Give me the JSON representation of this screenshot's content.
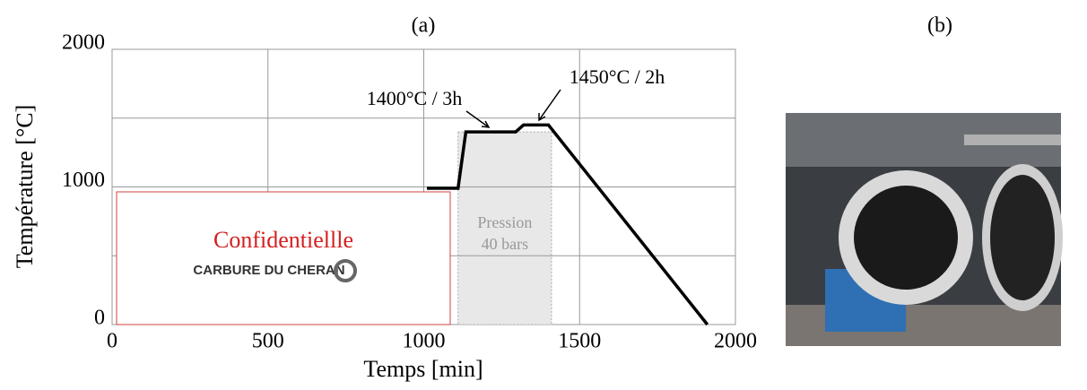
{
  "chart_data": {
    "type": "line",
    "panel_label": "(a)",
    "xlabel": "Temps [min]",
    "ylabel": "Température [°C]",
    "xlim": [
      0,
      2000
    ],
    "ylim": [
      0,
      2000
    ],
    "xticks": [
      0,
      500,
      1000,
      1500,
      2000
    ],
    "yticks": [
      0,
      1000,
      2000
    ],
    "ygrid": [
      500,
      1000,
      1500
    ],
    "grid": true,
    "series": [
      {
        "color": "#000000",
        "x": [
          1010,
          1110,
          1135,
          1295,
          1320,
          1400,
          1910
        ],
        "values": [
          990,
          990,
          1400,
          1400,
          1450,
          1450,
          0
        ]
      }
    ],
    "shaded_region": {
      "x": [
        1110,
        1410
      ],
      "y": 1400,
      "label": [
        "Pression",
        "40 bars"
      ],
      "color": "#e8e8e8"
    },
    "annotations": [
      "1400°C / 3h",
      "1450°C / 2h"
    ],
    "overlay": {
      "text": "Confidentiellle",
      "logo": "CARBURE DU CHERAN"
    }
  },
  "photo": {
    "label": "(b)"
  }
}
